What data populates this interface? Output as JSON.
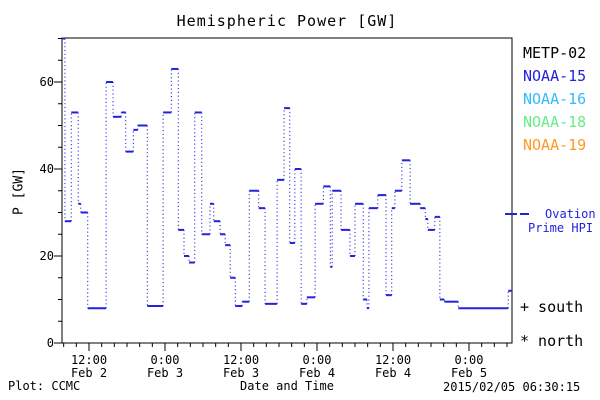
{
  "title": "Hemispheric Power [GW]",
  "axes": {
    "ylabel": "P [GW]",
    "xlabel": "Date and Time",
    "y_ticks": [
      0,
      20,
      40,
      60
    ],
    "y_minor_step": 5,
    "x_minor_step_hours": 2,
    "x_ticks": [
      {
        "hour": 12,
        "time": "12:00",
        "date": "Feb 2"
      },
      {
        "hour": 24,
        "time": "0:00",
        "date": "Feb 3"
      },
      {
        "hour": 36,
        "time": "12:00",
        "date": "Feb 3"
      },
      {
        "hour": 48,
        "time": "0:00",
        "date": "Feb 4"
      },
      {
        "hour": 60,
        "time": "12:00",
        "date": "Feb 4"
      },
      {
        "hour": 72,
        "time": "0:00",
        "date": "Feb 5"
      }
    ]
  },
  "legend": {
    "satellites": [
      {
        "label": "METP-02",
        "color": "#000000"
      },
      {
        "label": "NOAA-15",
        "color": "#2222dd"
      },
      {
        "label": "NOAA-16",
        "color": "#33bbff"
      },
      {
        "label": "NOAA-18",
        "color": "#66ee88"
      },
      {
        "label": "NOAA-19",
        "color": "#ff9922"
      }
    ],
    "ovation": {
      "label_line1": "Ovation",
      "label_line2": "Prime HPI",
      "color": "#2222dd"
    },
    "south": "+ south",
    "north": "* north"
  },
  "footer": {
    "plot_credit": "Plot: CCMC",
    "timestamp": "2015/02/05 06:30:15"
  },
  "chart_data": {
    "type": "line",
    "style": "horizontal dashes per observation with dotted vertical connectors",
    "title": "Hemispheric Power [GW]",
    "xlabel": "Date and Time",
    "ylabel": "P [GW]",
    "ylim": [
      0,
      70
    ],
    "x_unit": "hours since 2015-02-02 00:00 UT",
    "xlim": [
      7.7,
      78.8
    ],
    "grid": false,
    "legend_position": "right",
    "series": [
      {
        "name": "Ovation Prime HPI",
        "color": "#2222dd",
        "segments": [
          [
            7.7,
            8.2,
            70
          ],
          [
            8.2,
            9.2,
            28
          ],
          [
            9.2,
            10.3,
            53
          ],
          [
            10.3,
            10.7,
            32
          ],
          [
            10.7,
            11.8,
            30
          ],
          [
            11.8,
            14.7,
            8
          ],
          [
            14.7,
            15.8,
            60
          ],
          [
            15.8,
            17.1,
            52
          ],
          [
            17.1,
            17.8,
            53
          ],
          [
            17.8,
            19.0,
            44
          ],
          [
            19.0,
            19.7,
            49
          ],
          [
            19.7,
            21.2,
            50
          ],
          [
            21.2,
            23.7,
            8.5
          ],
          [
            23.7,
            25.0,
            53
          ],
          [
            25.0,
            26.1,
            63
          ],
          [
            26.1,
            27.0,
            26
          ],
          [
            27.0,
            27.8,
            20
          ],
          [
            27.8,
            28.7,
            18.5
          ],
          [
            28.7,
            29.8,
            53
          ],
          [
            29.8,
            31.1,
            25
          ],
          [
            31.1,
            31.7,
            32
          ],
          [
            31.7,
            32.7,
            28
          ],
          [
            32.7,
            33.5,
            25
          ],
          [
            33.5,
            34.3,
            22.5
          ],
          [
            34.3,
            35.1,
            15
          ],
          [
            35.1,
            36.2,
            8.5
          ],
          [
            36.2,
            37.3,
            9.5
          ],
          [
            37.3,
            38.8,
            35
          ],
          [
            38.8,
            39.8,
            31
          ],
          [
            39.8,
            41.7,
            9
          ],
          [
            41.7,
            42.8,
            37.5
          ],
          [
            42.8,
            43.7,
            54
          ],
          [
            43.7,
            44.5,
            23
          ],
          [
            44.5,
            45.5,
            40
          ],
          [
            45.5,
            46.4,
            9
          ],
          [
            46.4,
            47.7,
            10.5
          ],
          [
            47.7,
            49.0,
            32
          ],
          [
            49.0,
            50.1,
            36
          ],
          [
            50.1,
            50.4,
            17.5
          ],
          [
            50.4,
            51.8,
            35
          ],
          [
            51.8,
            53.2,
            26
          ],
          [
            53.2,
            54.0,
            20
          ],
          [
            54.0,
            55.3,
            32
          ],
          [
            55.3,
            55.9,
            10
          ],
          [
            55.9,
            56.2,
            8
          ],
          [
            56.2,
            57.6,
            31
          ],
          [
            57.6,
            58.9,
            34
          ],
          [
            58.9,
            59.8,
            11
          ],
          [
            59.8,
            60.3,
            31
          ],
          [
            60.3,
            61.4,
            35
          ],
          [
            61.4,
            62.7,
            42
          ],
          [
            62.7,
            64.3,
            32
          ],
          [
            64.3,
            65.1,
            31
          ],
          [
            65.1,
            65.5,
            28.5
          ],
          [
            65.5,
            66.6,
            26
          ],
          [
            66.6,
            67.4,
            29
          ],
          [
            67.4,
            68.1,
            10
          ],
          [
            68.1,
            70.3,
            9.5
          ],
          [
            70.3,
            78.2,
            8
          ],
          [
            78.2,
            78.8,
            12
          ]
        ]
      }
    ]
  }
}
